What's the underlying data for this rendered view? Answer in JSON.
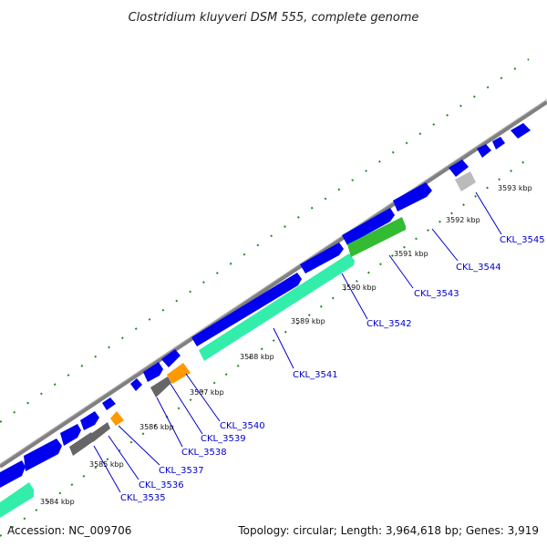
{
  "title": "Clostridium kluyveri DSM 555, complete genome",
  "accession": "Accession: NC_009706",
  "topology": "Topology: circular; Length: 3,964,618 bp; Genes: 3,919",
  "colors": {
    "backbone": "#808080",
    "forward_cds": "#0000ee",
    "reverse_cds": "#33eeaa",
    "reverse_cds_green": "#33bb33",
    "reverse_orange": "#ff9900",
    "reverse_gray": "#666666",
    "reverse_light_gray": "#bbbbbb",
    "label_line": "#0000cc",
    "tick_marks": "#228822"
  },
  "kbp_ticks": [
    {
      "position_kbp": 3584,
      "label": "3584 kbp"
    },
    {
      "position_kbp": 3585,
      "label": "3585 kbp"
    },
    {
      "position_kbp": 3586,
      "label": "3586 kbp"
    },
    {
      "position_kbp": 3587,
      "label": "3587 kbp"
    },
    {
      "position_kbp": 3588,
      "label": "3588 kbp"
    },
    {
      "position_kbp": 3589,
      "label": "3589 kbp"
    },
    {
      "position_kbp": 3590,
      "label": "3590 kbp"
    },
    {
      "position_kbp": 3591,
      "label": "3591 kbp"
    },
    {
      "position_kbp": 3592,
      "label": "3592 kbp"
    },
    {
      "position_kbp": 3593,
      "label": "3593 kbp"
    }
  ],
  "gene_labels": [
    "CKL_3535",
    "CKL_3536",
    "CKL_3537",
    "CKL_3538",
    "CKL_3539",
    "CKL_3540",
    "CKL_3541",
    "CKL_3542",
    "CKL_3543",
    "CKL_3544",
    "CKL_3545"
  ]
}
